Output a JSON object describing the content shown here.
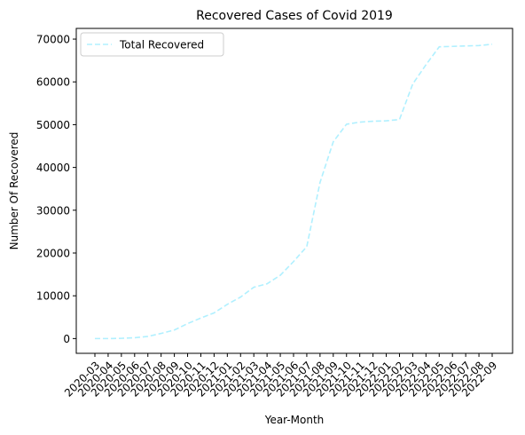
{
  "chart_data": {
    "type": "line",
    "title": "Recovered Cases of Covid 2019",
    "xlabel": "Year-Month",
    "ylabel": "Number Of Recovered",
    "categories": [
      "2020-03",
      "2020-04",
      "2020-05",
      "2020-06",
      "2020-07",
      "2020-08",
      "2020-09",
      "2020-10",
      "2020-11",
      "2020-12",
      "2021-01",
      "2021-02",
      "2021-03",
      "2021-04",
      "2021-05",
      "2021-06",
      "2021-07",
      "2021-08",
      "2021-09",
      "2021-10",
      "2021-11",
      "2021-12",
      "2022-01",
      "2022-02",
      "2022-03",
      "2022-04",
      "2022-05",
      "2022-06",
      "2022-07",
      "2022-08",
      "2022-09"
    ],
    "y_ticks": [
      0,
      10000,
      20000,
      30000,
      40000,
      50000,
      60000,
      70000
    ],
    "ylim": [
      -3450,
      72500
    ],
    "grid": false,
    "legend_position": "top-left",
    "series": [
      {
        "name": "Total Recovered",
        "color": "#b0f0ff",
        "line_style": "dashed",
        "values": [
          0,
          0,
          50,
          200,
          500,
          1200,
          2000,
          3500,
          4800,
          6000,
          8000,
          9700,
          12000,
          12800,
          14800,
          18000,
          21500,
          36500,
          46000,
          50100,
          50600,
          50800,
          50900,
          51200,
          59500,
          64000,
          68200,
          68300,
          68400,
          68500,
          68800
        ]
      }
    ]
  }
}
